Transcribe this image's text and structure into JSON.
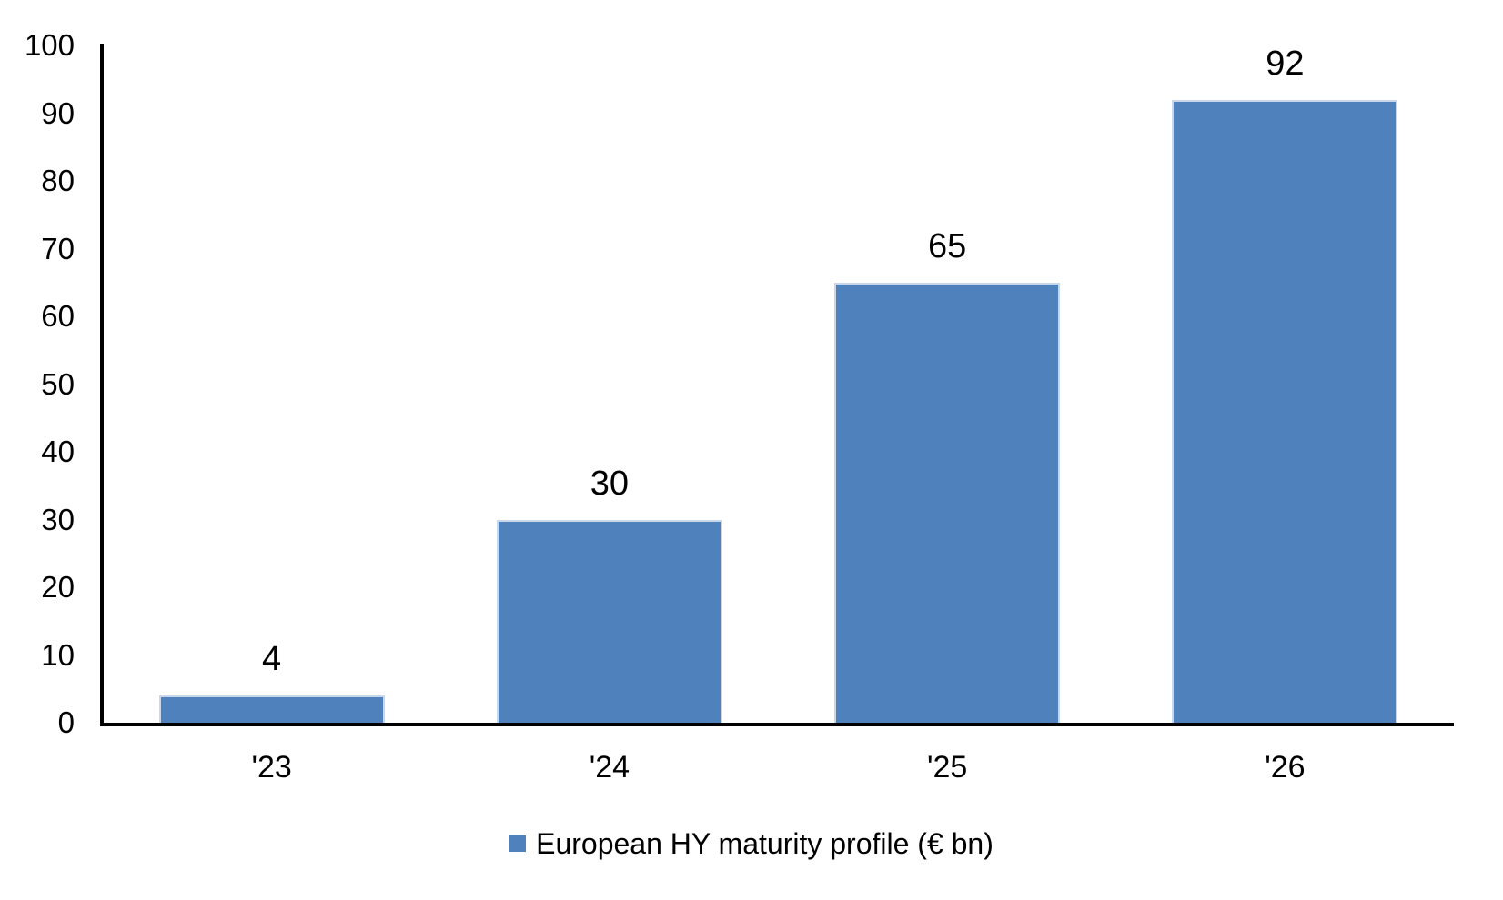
{
  "chart_data": {
    "type": "bar",
    "title": "",
    "categories": [
      "'23",
      "'24",
      "'25",
      "'26"
    ],
    "values": [
      4,
      30,
      65,
      92
    ],
    "series_label": "European HY maturity profile (€ bn)",
    "xlabel": "",
    "ylabel": "",
    "ylim": [
      0,
      100
    ],
    "ytick_step": 10,
    "yticks": [
      0,
      10,
      20,
      30,
      40,
      50,
      60,
      70,
      80,
      90,
      100
    ],
    "show_data_labels": true,
    "grid": false,
    "legend_position": "bottom-center",
    "colors": {
      "bar_fill": "#4F81BD",
      "bar_edge": "#C9D7EB",
      "axis": "#000000",
      "text": "#000000",
      "background": "#FFFFFF"
    }
  }
}
